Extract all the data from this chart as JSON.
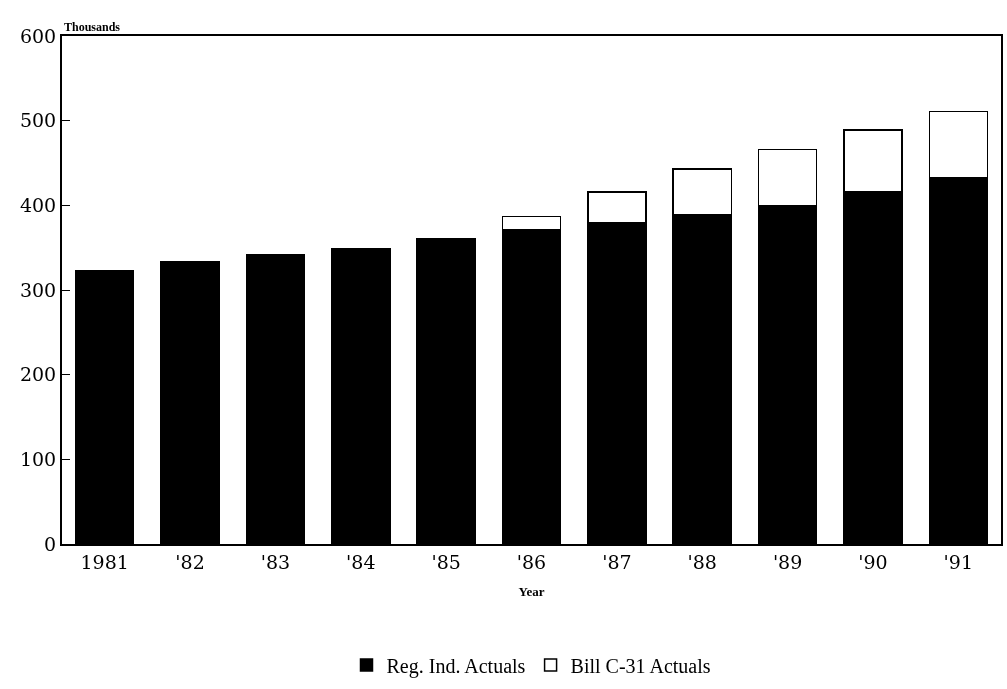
{
  "chart_data": {
    "type": "bar",
    "stacked": true,
    "ylabel": "Thousands",
    "xlabel": "Year",
    "categories": [
      "1981",
      "'82",
      "'83",
      "'84",
      "'85",
      "'86",
      "'87",
      "'88",
      "'89",
      "'90",
      "'91"
    ],
    "series": [
      {
        "name": "Reg. Ind. Actuals",
        "color": "#000000",
        "values": [
          323,
          333,
          342,
          349,
          361,
          371,
          379,
          389,
          400,
          416,
          432
        ]
      },
      {
        "name": "Bill C-31 Actuals",
        "color": "#ffffff",
        "values": [
          null,
          null,
          null,
          null,
          null,
          16,
          37,
          54,
          66,
          73,
          79
        ]
      }
    ],
    "ylim": [
      0,
      600
    ],
    "yticks": [
      0,
      100,
      200,
      300,
      400,
      500,
      600
    ],
    "legend": "bottom"
  }
}
